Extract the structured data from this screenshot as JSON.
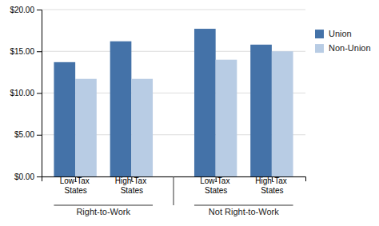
{
  "chart_data": {
    "type": "bar",
    "categories": [
      "Low-Tax States",
      "High-Tax States",
      "Low-Tax States",
      "High-Tax States"
    ],
    "annotations": [
      "Right-to-Work",
      "Not Right-to-Work"
    ],
    "series": [
      {
        "name": "Union",
        "color": "#4472A8",
        "values": [
          13.7,
          16.2,
          17.7,
          15.8
        ]
      },
      {
        "name": "Non-Union",
        "color": "#B8CCE4",
        "values": [
          11.7,
          11.7,
          14.0,
          15.0
        ]
      }
    ],
    "ylim": [
      0,
      20
    ],
    "yticks": [
      {
        "value": 0,
        "label": "$0.00"
      },
      {
        "value": 5,
        "label": "$5.00"
      },
      {
        "value": 10,
        "label": "$10.00"
      },
      {
        "value": 15,
        "label": "$15.00"
      },
      {
        "value": 20,
        "label": "$20.00"
      }
    ],
    "grid": true,
    "legend": "right"
  }
}
